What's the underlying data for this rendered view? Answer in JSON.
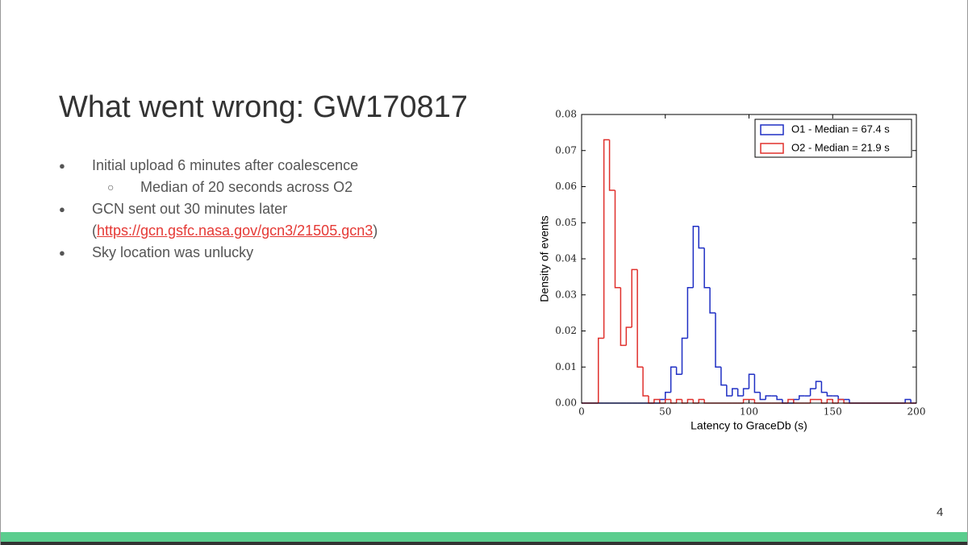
{
  "slide": {
    "title": "What went wrong: GW170817",
    "bullets": [
      {
        "text": "Initial upload 6 minutes after coalescence",
        "sub": [
          "Median of 20 seconds across O2"
        ]
      },
      {
        "text": "GCN sent out 30 minutes later",
        "link_prefix": "(",
        "link": "https://gcn.gsfc.nasa.gov/gcn3/21505.gcn3",
        "link_suffix": ")"
      },
      {
        "text": "Sky location was unlucky"
      }
    ],
    "page_number": "4"
  },
  "chart_data": {
    "type": "histogram",
    "xlabel": "Latency to GraceDb (s)",
    "ylabel": "Density of events",
    "bins": [
      0,
      3.33,
      6.67,
      10,
      13.33,
      16.67,
      20,
      23.33,
      26.67,
      30,
      33.33,
      36.67,
      40,
      43.33,
      46.67,
      50,
      53.33,
      56.67,
      60,
      63.33,
      66.67,
      70,
      73.33,
      76.67,
      80,
      83.33,
      86.67,
      90,
      93.33,
      96.67,
      100,
      103.33,
      106.67,
      110,
      113.33,
      116.67,
      120,
      123.33,
      126.67,
      130,
      133.33,
      136.67,
      140,
      143.33,
      146.67,
      150,
      153.33,
      156.67,
      160,
      163.33,
      166.67,
      170,
      173.33,
      176.67,
      180,
      183.33,
      186.67,
      190,
      193.33,
      196.67,
      200
    ],
    "series": [
      {
        "name": "O1 - Median = 67.4 s",
        "color": "#1f2fc4",
        "values": [
          0,
          0,
          0,
          0,
          0,
          0,
          0,
          0,
          0,
          0,
          0,
          0,
          0,
          0,
          0.001,
          0.003,
          0.01,
          0.008,
          0.018,
          0.032,
          0.049,
          0.043,
          0.032,
          0.025,
          0.01,
          0.005,
          0.002,
          0.004,
          0.002,
          0.004,
          0.008,
          0.003,
          0.001,
          0.002,
          0.002,
          0.001,
          0,
          0,
          0.001,
          0.002,
          0.002,
          0.004,
          0.006,
          0.003,
          0.002,
          0.002,
          0.001,
          0.001,
          0,
          0,
          0,
          0,
          0,
          0,
          0,
          0,
          0,
          0,
          0.001,
          0
        ]
      },
      {
        "name": "O2 - Median = 21.9 s",
        "color": "#e0302c",
        "values": [
          0,
          0,
          0,
          0.018,
          0.073,
          0.059,
          0.032,
          0.016,
          0.021,
          0.037,
          0.01,
          0.002,
          0,
          0.001,
          0,
          0.001,
          0,
          0.001,
          0,
          0.001,
          0,
          0.001,
          0,
          0,
          0,
          0,
          0,
          0,
          0,
          0.001,
          0.001,
          0,
          0,
          0,
          0,
          0,
          0,
          0.001,
          0,
          0,
          0,
          0.001,
          0.001,
          0,
          0.001,
          0,
          0.001,
          0,
          0,
          0,
          0,
          0,
          0,
          0,
          0,
          0,
          0,
          0,
          0,
          0
        ]
      }
    ],
    "xlim": [
      0,
      200
    ],
    "ylim": [
      0,
      0.08
    ],
    "xticks": [
      0,
      50,
      100,
      150,
      200
    ],
    "yticks": [
      {
        "value": 0,
        "label": "0.00"
      },
      {
        "value": 0.01,
        "label": "0.01"
      },
      {
        "value": 0.02,
        "label": "0.02"
      },
      {
        "value": 0.03,
        "label": "0.03"
      },
      {
        "value": 0.04,
        "label": "0.04"
      },
      {
        "value": 0.05,
        "label": "0.05"
      },
      {
        "value": 0.06,
        "label": "0.06"
      },
      {
        "value": 0.07,
        "label": "0.07"
      },
      {
        "value": 0.08,
        "label": "0.08"
      }
    ],
    "legend": "upper right"
  }
}
